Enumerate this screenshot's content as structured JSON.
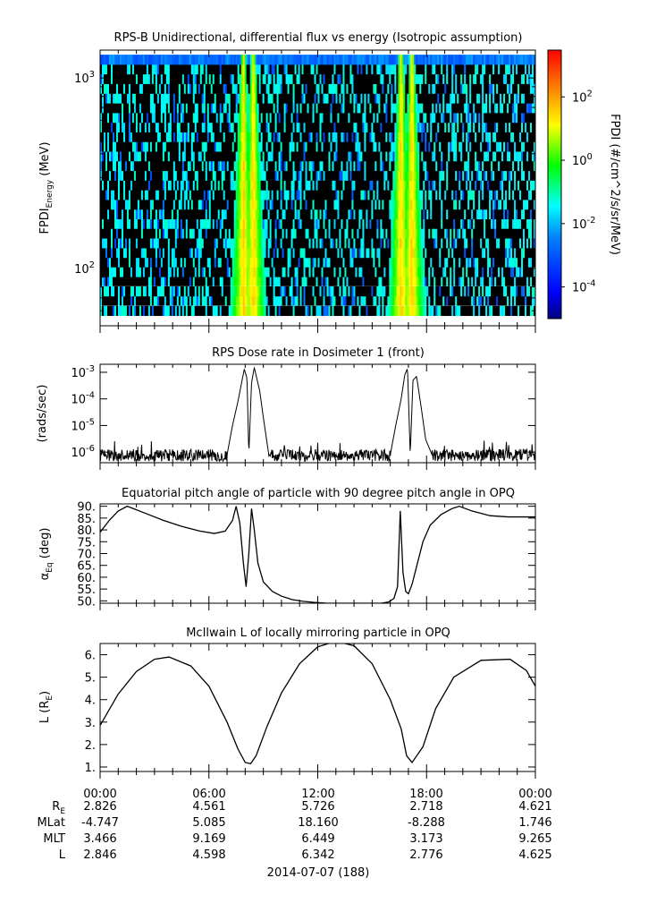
{
  "chart_data": [
    {
      "type": "heatmap",
      "title": "RPS-B  Unidirectional, differential flux vs energy (Isotropic assumption)",
      "ylabel": "FPDI",
      "ylabel_sub": "Energy",
      "ylabel_unit": " (MeV)",
      "yscale": "log",
      "ylim": [
        50,
        1400
      ],
      "yticks": [
        {
          "value": 100,
          "base": "10",
          "exp": "2"
        },
        {
          "value": 1000,
          "base": "10",
          "exp": "3"
        }
      ],
      "energy_bins_mev": [
        60,
        68,
        76,
        86,
        96,
        108,
        121,
        136,
        153,
        172,
        193,
        217,
        244,
        274,
        308,
        346,
        389,
        437,
        491,
        552,
        620,
        697,
        783,
        880,
        990,
        1113,
        1250
      ],
      "peaks_hours": [
        7.9,
        8.45,
        16.6,
        17.2
      ],
      "colorbar": {
        "label": "FPDI (#/cm^2/s/sr/MeV)",
        "scale": "log",
        "range": [
          1e-05,
          3000
        ],
        "ticks": [
          {
            "value": 0.0001,
            "base": "10",
            "exp": "-4"
          },
          {
            "value": 0.01,
            "base": "10",
            "exp": "-2"
          },
          {
            "value": 1,
            "base": "10",
            "exp": "0"
          },
          {
            "value": 100,
            "base": "10",
            "exp": "2"
          }
        ],
        "colors": [
          "#000080",
          "#0000ff",
          "#0080ff",
          "#00ffff",
          "#00ff00",
          "#ffff00",
          "#ff8000",
          "#ff0000"
        ]
      }
    },
    {
      "type": "line",
      "title": "RPS  Dose rate in Dosimeter 1 (front)",
      "ylabel": "(rads/sec)",
      "yscale": "log",
      "ylim": [
        4e-07,
        0.002
      ],
      "yticks": [
        {
          "value": 1e-06,
          "base": "10",
          "exp": "-6"
        },
        {
          "value": 1e-05,
          "base": "10",
          "exp": "-5"
        },
        {
          "value": 0.0001,
          "base": "10",
          "exp": "-4"
        },
        {
          "value": 0.001,
          "base": "10",
          "exp": "-3"
        }
      ],
      "baseline": 8e-07,
      "x_hours": [
        0,
        7.0,
        7.3,
        7.6,
        7.8,
        7.95,
        8.1,
        8.2,
        8.35,
        8.5,
        8.8,
        9.0,
        9.3,
        16.0,
        16.3,
        16.6,
        16.8,
        16.95,
        17.1,
        17.25,
        17.45,
        17.7,
        17.95,
        18.3,
        24
      ],
      "y_values": [
        8e-07,
        8e-07,
        1e-05,
        8e-05,
        0.0004,
        0.0013,
        0.0006,
        8e-07,
        0.0004,
        0.0015,
        0.0002,
        2e-05,
        8e-07,
        8e-07,
        1e-05,
        0.0001,
        0.0008,
        0.0014,
        8e-07,
        0.0005,
        0.0007,
        5e-05,
        3e-06,
        8e-07,
        8e-07
      ]
    },
    {
      "type": "line",
      "title": "Equatorial pitch angle of particle with 90 degree pitch angle in OPQ",
      "ylabel": "α",
      "ylabel_sub": "Eq",
      "ylabel_unit": " (deg)",
      "ylim": [
        49,
        91
      ],
      "yticks": [
        50,
        55,
        60,
        65,
        70,
        75,
        80,
        85,
        90
      ],
      "ytick_labels": [
        "50.",
        "55.",
        "60.",
        "65.",
        "70.",
        "75.",
        "80.",
        "85.",
        "90."
      ],
      "x_hours": [
        0,
        0.5,
        1.0,
        1.5,
        2.5,
        3.5,
        4.5,
        5.5,
        6.3,
        6.9,
        7.3,
        7.5,
        7.7,
        7.9,
        8.05,
        8.2,
        8.35,
        8.5,
        8.7,
        9.0,
        9.5,
        10.0,
        10.6,
        11.2,
        11.9,
        12.5,
        14.0,
        15.5,
        15.9,
        16.2,
        16.4,
        16.55,
        16.7,
        16.85,
        17.0,
        17.2,
        17.5,
        17.8,
        18.2,
        18.8,
        19.4,
        19.8,
        20.5,
        21.5,
        22.5,
        24
      ],
      "y_values": [
        79,
        84,
        88,
        90,
        87,
        84,
        81.5,
        79.5,
        78.5,
        79.5,
        84,
        90,
        83,
        66,
        56,
        70,
        89,
        80,
        66,
        58,
        54,
        52,
        50.5,
        49.8,
        49.3,
        49,
        49,
        49,
        49.5,
        51,
        56,
        88,
        62,
        54,
        53,
        57,
        66,
        75,
        82,
        86.5,
        89,
        90,
        88,
        86,
        85.5,
        85.5
      ]
    },
    {
      "type": "line",
      "title": "McIlwain L of locally mirroring particle in OPQ",
      "ylabel": "L (R",
      "ylabel_sub": "E",
      "ylabel_unit": ")",
      "ylim": [
        0.8,
        6.5
      ],
      "yticks": [
        1,
        2,
        3,
        4,
        5,
        6
      ],
      "ytick_labels": [
        "1.",
        "2.",
        "3.",
        "4.",
        "5.",
        "6."
      ],
      "x_hours": [
        0,
        1,
        2,
        3,
        3.8,
        5,
        6,
        7,
        7.6,
        8.0,
        8.3,
        8.6,
        9.2,
        10,
        11,
        12,
        13,
        14,
        15,
        16,
        16.6,
        16.9,
        17.2,
        17.8,
        18.5,
        19.5,
        21,
        22.6,
        23.5,
        24
      ],
      "y_values": [
        2.85,
        4.25,
        5.25,
        5.8,
        5.9,
        5.5,
        4.6,
        3.0,
        1.8,
        1.2,
        1.15,
        1.5,
        2.8,
        4.3,
        5.6,
        6.35,
        6.6,
        6.4,
        5.6,
        4.0,
        2.7,
        1.5,
        1.2,
        1.9,
        3.6,
        5.0,
        5.75,
        5.8,
        5.3,
        4.6
      ]
    }
  ],
  "xaxis": {
    "tick_labels": [
      "00:00",
      "06:00",
      "12:00",
      "18:00",
      "00:00"
    ],
    "date_label": "2014-07-07 (188)"
  },
  "ephemeris": {
    "row_labels": [
      "R",
      "MLat",
      "MLT",
      "L"
    ],
    "row_label_subs": [
      "E",
      "",
      "",
      ""
    ],
    "values": [
      [
        "2.826",
        "4.561",
        "5.726",
        "2.718",
        "4.621"
      ],
      [
        "-4.747",
        "5.085",
        "18.160",
        "-8.288",
        "1.746"
      ],
      [
        "3.466",
        "9.169",
        "6.449",
        "3.173",
        "9.265"
      ],
      [
        "2.846",
        "4.598",
        "6.342",
        "2.776",
        "4.625"
      ]
    ]
  }
}
